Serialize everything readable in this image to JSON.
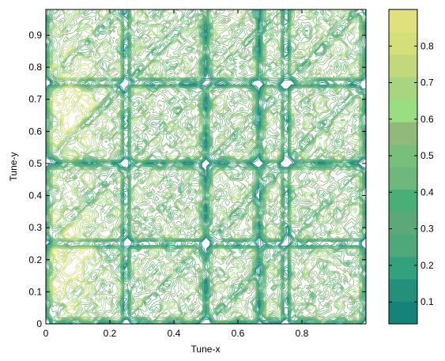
{
  "chart_data": {
    "type": "heatmap",
    "subtype": "contour",
    "title": "",
    "xlabel": "Tune-x",
    "ylabel": "Tune-y",
    "xlim": [
      0,
      1
    ],
    "ylim": [
      0,
      0.98
    ],
    "xticks": [
      "0",
      "0.2",
      "0.4",
      "0.6",
      "0.8"
    ],
    "yticks": [
      "0",
      "0.1",
      "0.2",
      "0.3",
      "0.4",
      "0.5",
      "0.6",
      "0.7",
      "0.8",
      "0.9"
    ],
    "colorbar": {
      "range": [
        0.04,
        0.9
      ],
      "ticks": [
        "0.1",
        "0.2",
        "0.3",
        "0.4",
        "0.5",
        "0.6",
        "0.7",
        "0.8"
      ],
      "colors": [
        "#16837a",
        "#25907a",
        "#34a17e",
        "#4fa87a",
        "#5ca878",
        "#49af77",
        "#6db87a",
        "#78c079",
        "#90b97a",
        "#9ade82",
        "#a8d580",
        "#c3d87c",
        "#d5df7a",
        "#e0e07c"
      ]
    },
    "features": {
      "resonance_lines_x": [
        0,
        0.25,
        0.5,
        0.667,
        0.75,
        1
      ],
      "resonance_lines_y": [
        0,
        0.25,
        0.5,
        0.75,
        1
      ],
      "high_value_regions": [
        {
          "x": [
            0.02,
            0.14
          ],
          "y": [
            0.55,
            0.82
          ],
          "level": 0.85
        },
        {
          "x": [
            0.02,
            0.14
          ],
          "y": [
            0.06,
            0.32
          ],
          "level": 0.85
        }
      ],
      "grid_lines": false,
      "colorbar_position": "right"
    }
  }
}
